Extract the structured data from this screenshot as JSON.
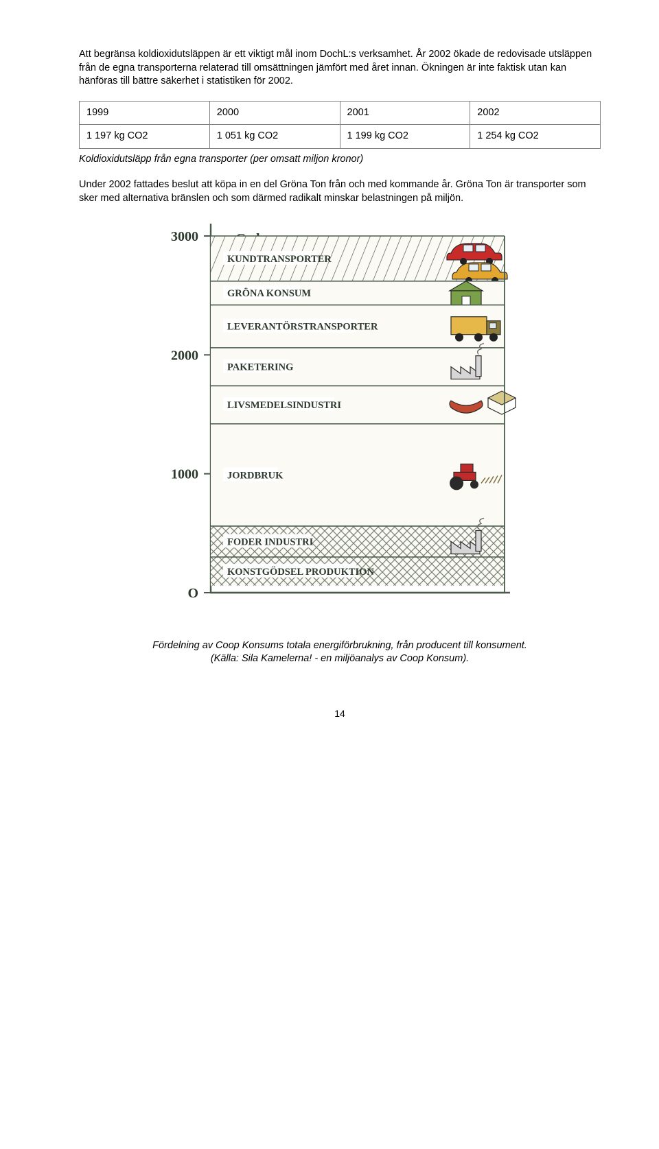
{
  "intro_text": "Att begränsa koldioxidutsläppen är ett viktigt mål inom DochL:s verksamhet. År 2002 ökade de redovisade utsläppen från de egna transporterna relaterad till omsättningen jämfört med året innan. Ökningen är inte faktisk utan kan hänföras till bättre säkerhet i statistiken för 2002.",
  "table": {
    "header": [
      "1999",
      "2000",
      "2001",
      "2002"
    ],
    "row": [
      "1 197 kg CO2",
      "1 051 kg CO2",
      "1 199 kg CO2",
      "1 254 kg CO2"
    ]
  },
  "table_caption": "Koldioxidutsläpp från egna transporter (per omsatt miljon kronor)",
  "para2": "Under 2002 fattades beslut att köpa in en del Gröna Ton från och med kommande år. Gröna Ton är transporter som sker med alternativa bränslen och som därmed radikalt minskar belastningen på miljön.",
  "chart": {
    "type": "stacked-area-sketch",
    "y_axis_label": "Gwh",
    "y_ticks": [
      {
        "value": 0,
        "label": "O"
      },
      {
        "value": 1000,
        "label": "1000"
      },
      {
        "value": 2000,
        "label": "2000"
      },
      {
        "value": 3000,
        "label": "3000"
      }
    ],
    "bands": [
      {
        "label": "KUNDTRANSPORTER",
        "from": 2620,
        "to": 3000,
        "icon": "cars"
      },
      {
        "label": "GRÖNA KONSUM",
        "from": 2420,
        "to": 2620,
        "icon": "store"
      },
      {
        "label": "LEVERANTÖRSTRANSPORTER",
        "from": 2060,
        "to": 2420,
        "icon": "truck"
      },
      {
        "label": "PAKETERING",
        "from": 1740,
        "to": 2060,
        "icon": "factory"
      },
      {
        "label": "LIVSMEDELSINDUSTRI",
        "from": 1420,
        "to": 1740,
        "icon": "food"
      },
      {
        "label": "JORDBRUK",
        "from": 560,
        "to": 1420,
        "icon": "tractor"
      },
      {
        "label": "FODER INDUSTRI",
        "from": 300,
        "to": 560,
        "icon": "factory"
      },
      {
        "label": "KONSTGÖDSEL PRODUKTION",
        "from": 60,
        "to": 300,
        "icon": ""
      }
    ],
    "colors": {
      "line": "#4a5a4a",
      "grid_fill": "#fbfaf5",
      "car_red": "#c82b2a",
      "car_yellow": "#e3a72f",
      "truck_cab": "#8a7a3c",
      "truck_box": "#e6b84a",
      "store_green": "#7aa04a",
      "factory": "#6b6b6b",
      "food_red": "#c04a32",
      "food_beige": "#d8c98a",
      "tractor_red": "#bf2b2b",
      "tractor_black": "#2a2a2a",
      "axis_ink": "#2f3a2f"
    },
    "axis": {
      "x0": 92,
      "x1": 520,
      "y0": 540,
      "y1": 20,
      "ymin": 0,
      "ymax": 3000,
      "tick_color": "#3a4a3a",
      "label_color": "#20301f"
    }
  },
  "chart_caption_line1": "Fördelning av Coop Konsums totala energiförbrukning, från producent till konsument.",
  "chart_caption_line2": "(Källa: Sila Kamelerna! - en miljöanalys av Coop Konsum).",
  "page_number": "14"
}
